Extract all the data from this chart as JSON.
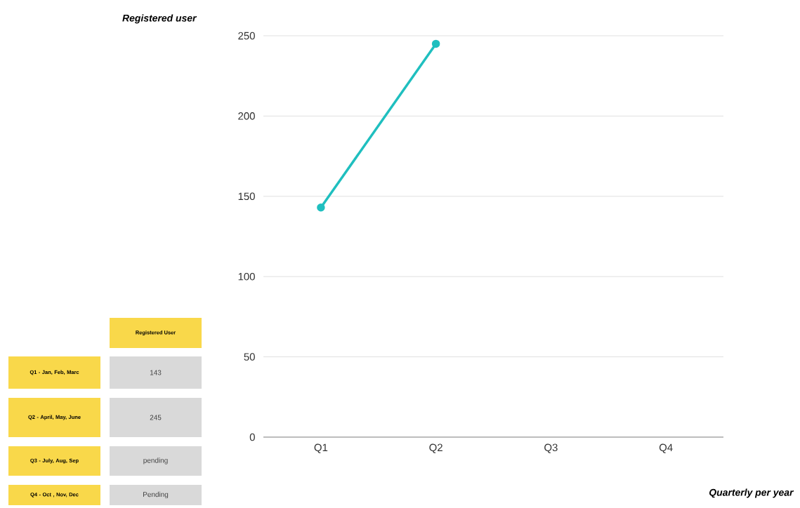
{
  "chart_data": [
    {
      "type": "line",
      "ylabel": "Registered user",
      "xlabel": "Quarterly per year",
      "categories": [
        "Q1",
        "Q2",
        "Q3",
        "Q4"
      ],
      "values": [
        143,
        245,
        null,
        null
      ],
      "color": "#1fbfbf",
      "marker": "circle",
      "line_style": "solid",
      "ylim": [
        0,
        250
      ],
      "yticks": [
        0,
        50,
        100,
        150,
        200,
        250
      ],
      "grid": "y"
    },
    {
      "type": "other",
      "title": "Registered User",
      "categories": [
        "Q1 - Jan, Feb, Marc",
        "Q2 - April, May, June",
        "Q3 - July, Aug, Sep",
        "Q4 - Oct , Nov, Dec"
      ],
      "annotations": [
        "143",
        "245",
        "pending",
        "Pending"
      ]
    }
  ]
}
